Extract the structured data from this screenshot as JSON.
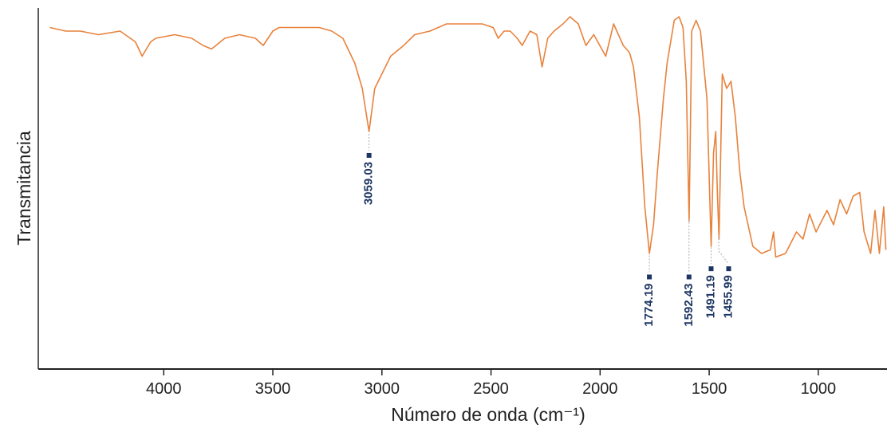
{
  "chart_data": {
    "type": "line",
    "x_label": "Número de onda (cm⁻¹)",
    "y_label": "Transmitancia",
    "x": [
      4522,
      4450,
      4383,
      4300,
      4200,
      4130,
      4099,
      4060,
      4036,
      3950,
      3872,
      3820,
      3781,
      3720,
      3653,
      3580,
      3544,
      3500,
      3471,
      3380,
      3288,
      3230,
      3179,
      3124,
      3090,
      3059,
      3033,
      2960,
      2900,
      2850,
      2780,
      2704,
      2620,
      2540,
      2490,
      2467,
      2440,
      2412,
      2380,
      2357,
      2321,
      2290,
      2266,
      2240,
      2211,
      2170,
      2138,
      2100,
      2065,
      2029,
      1974,
      1938,
      1894,
      1865,
      1847,
      1820,
      1795,
      1774,
      1755,
      1737,
      1710,
      1693,
      1660,
      1638,
      1620,
      1605,
      1592,
      1580,
      1560,
      1540,
      1510,
      1491,
      1480,
      1470,
      1463,
      1455,
      1440,
      1420,
      1400,
      1380,
      1360,
      1340,
      1300,
      1260,
      1220,
      1205,
      1195,
      1150,
      1100,
      1070,
      1040,
      1010,
      960,
      930,
      900,
      870,
      840,
      810,
      790,
      760,
      740,
      720,
      700,
      690
    ],
    "values": [
      95,
      94,
      94,
      93,
      94,
      91,
      87,
      91,
      92,
      93,
      92,
      90,
      89,
      92,
      93,
      92,
      90,
      94,
      95,
      95,
      95,
      94,
      92,
      85,
      78,
      66,
      78,
      87,
      90,
      93,
      94,
      96,
      96,
      96,
      95,
      92,
      94,
      94,
      92,
      90,
      94,
      93,
      84,
      92,
      94,
      96,
      98,
      96,
      90,
      93,
      87,
      96,
      90,
      88,
      84,
      70,
      45,
      32,
      40,
      55,
      75,
      85,
      97,
      98,
      95,
      80,
      41,
      94,
      97,
      94,
      75,
      34,
      60,
      66,
      50,
      36,
      82,
      78,
      80,
      70,
      55,
      45,
      34,
      32,
      33,
      38,
      31,
      32,
      38,
      36,
      43,
      38,
      44,
      40,
      47,
      43,
      48,
      49,
      38,
      32,
      44,
      32,
      45,
      33
    ],
    "color": "#e8823c",
    "xlim": [
      4575,
      685
    ],
    "ylim": [
      0,
      100
    ],
    "xticks": [
      4000,
      3500,
      3000,
      2500,
      2000,
      1500,
      1000
    ],
    "peaks": [
      3059.03,
      1774.19,
      1592.43,
      1491.19,
      1455.99
    ],
    "peak_color": "#1d3563"
  }
}
